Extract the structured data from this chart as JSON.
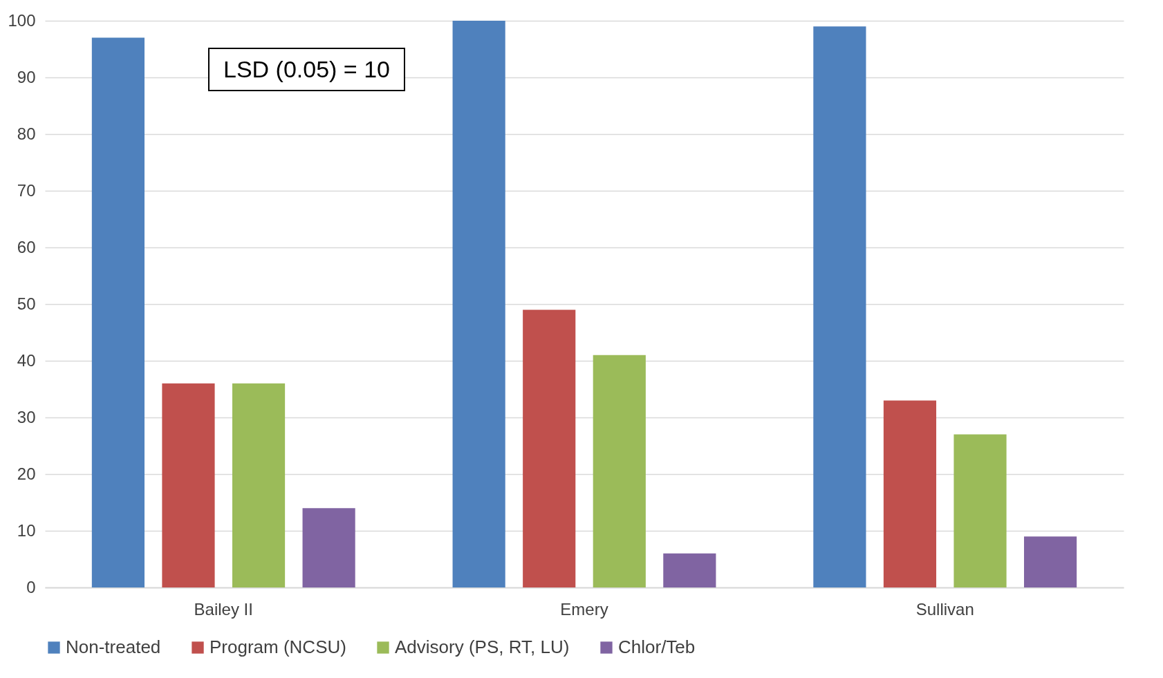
{
  "chart_data": {
    "type": "bar",
    "categories": [
      "Bailey II",
      "Emery",
      "Sullivan"
    ],
    "series": [
      {
        "name": "Non-treated",
        "color": "#4f81bd",
        "values": [
          97,
          100,
          99
        ]
      },
      {
        "name": "Program (NCSU)",
        "color": "#c0504d",
        "values": [
          36,
          49,
          33
        ]
      },
      {
        "name": "Advisory (PS, RT, LU)",
        "color": "#9bbb59",
        "values": [
          36,
          41,
          27
        ]
      },
      {
        "name": "Chlor/Teb",
        "color": "#8064a2",
        "values": [
          14,
          6,
          9
        ]
      }
    ],
    "ylim": [
      0,
      100
    ],
    "yticks": [
      0,
      10,
      20,
      30,
      40,
      50,
      60,
      70,
      80,
      90,
      100
    ],
    "grid": "y",
    "legend": "bottom",
    "annotations": [
      "LSD (0.05) = 10"
    ]
  }
}
